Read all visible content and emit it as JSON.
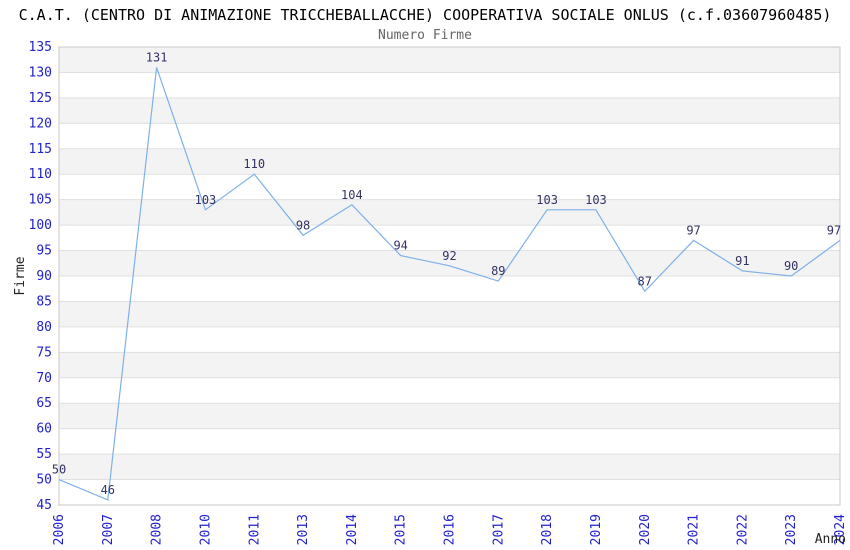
{
  "header": {
    "title": "C.A.T. (CENTRO DI ANIMAZIONE TRICCHEBALLACCHE) COOPERATIVA SOCIALE ONLUS (c.f.03607960485)"
  },
  "chart_data": {
    "type": "line",
    "title": "Numero Firme",
    "xlabel": "Anno",
    "ylabel": "Firme",
    "categories": [
      "2006",
      "2007",
      "2008",
      "2010",
      "2011",
      "2013",
      "2014",
      "2015",
      "2016",
      "2017",
      "2018",
      "2019",
      "2020",
      "2021",
      "2022",
      "2023",
      "2024"
    ],
    "values": [
      50,
      46,
      131,
      103,
      110,
      98,
      104,
      94,
      92,
      89,
      103,
      103,
      87,
      97,
      91,
      90,
      97
    ],
    "ylim": [
      45,
      135
    ],
    "ytick_step": 5,
    "grid": true,
    "legend_position": "none",
    "banded_background": true,
    "colors": {
      "line": "#7fb0e8",
      "data_label": "#333366",
      "tick_label": "#2222cc",
      "band_fill": "#f3f3f3",
      "gridline": "#e0e0e0",
      "plot_border": "#c8c8c8",
      "subtitle": "#666666",
      "axis_title": "#222222",
      "title": "#000000"
    }
  }
}
